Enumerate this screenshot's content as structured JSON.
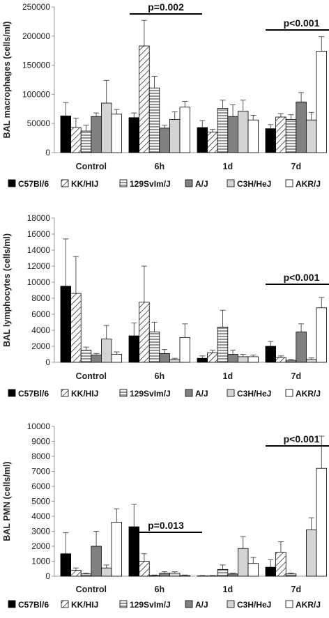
{
  "chart_data": [
    {
      "type": "bar",
      "ylabel": "BAL macrophages (cells/ml)",
      "ylim": [
        0,
        250000
      ],
      "yticks": [
        0,
        50000,
        100000,
        150000,
        200000,
        250000
      ],
      "yticklabels": [
        "0",
        "50000",
        "100000",
        "150000",
        "200000",
        "250000"
      ],
      "categories": [
        "Control",
        "6h",
        "1d",
        "7d"
      ],
      "series": [
        {
          "name": "C57Bl/6",
          "values": [
            63000,
            60000,
            43000,
            41000
          ],
          "errors": [
            23000,
            8000,
            12000,
            7000
          ]
        },
        {
          "name": "KK/HIJ",
          "values": [
            43000,
            183000,
            35000,
            61000
          ],
          "errors": [
            16000,
            44000,
            5000,
            6000
          ]
        },
        {
          "name": "129SvIm/J",
          "values": [
            37000,
            111000,
            76000,
            57000
          ],
          "errors": [
            10000,
            20000,
            14000,
            8000
          ]
        },
        {
          "name": "A/J",
          "values": [
            62000,
            42000,
            62000,
            87000
          ],
          "errors": [
            6000,
            5000,
            20000,
            16000
          ]
        },
        {
          "name": "C3H/HeJ",
          "values": [
            85000,
            57000,
            71000,
            56000
          ],
          "errors": [
            39000,
            13000,
            19000,
            13000
          ]
        },
        {
          "name": "AKR/J",
          "values": [
            66000,
            78000,
            56000,
            174000
          ],
          "errors": [
            8000,
            10000,
            8000,
            25000
          ]
        }
      ],
      "annotations": [
        {
          "text": "p=0.002",
          "category": "6h"
        },
        {
          "text": "p<0.001",
          "category": "7d"
        }
      ],
      "legend": "bottom"
    },
    {
      "type": "bar",
      "ylabel": "BAL lymphocytes (cells/ml)",
      "ylim": [
        0,
        18000
      ],
      "yticks": [
        0,
        2000,
        4000,
        6000,
        8000,
        10000,
        12000,
        14000,
        16000,
        18000
      ],
      "yticklabels": [
        "0",
        "2000",
        "4000",
        "6000",
        "8000",
        "10000",
        "12000",
        "14000",
        "16000",
        "18000"
      ],
      "categories": [
        "Control",
        "6h",
        "1d",
        "7d"
      ],
      "series": [
        {
          "name": "C57Bl/6",
          "values": [
            9500,
            3300,
            500,
            2000
          ],
          "errors": [
            5900,
            1600,
            300,
            600
          ]
        },
        {
          "name": "KK/HIJ",
          "values": [
            8600,
            7500,
            1200,
            600
          ],
          "errors": [
            4600,
            4500,
            300,
            200
          ]
        },
        {
          "name": "129SvIm/J",
          "values": [
            1500,
            3800,
            4400,
            250
          ],
          "errors": [
            400,
            1200,
            2100,
            100
          ]
        },
        {
          "name": "A/J",
          "values": [
            900,
            1100,
            1000,
            3800
          ],
          "errors": [
            200,
            500,
            500,
            1000
          ]
        },
        {
          "name": "C3H/HeJ",
          "values": [
            2900,
            350,
            700,
            350
          ],
          "errors": [
            1700,
            150,
            300,
            200
          ]
        },
        {
          "name": "AKR/J",
          "values": [
            1000,
            3100,
            700,
            6800
          ],
          "errors": [
            300,
            1700,
            200,
            1300
          ]
        }
      ],
      "annotations": [
        {
          "text": "p<0.001",
          "category": "7d"
        }
      ],
      "legend": "bottom"
    },
    {
      "type": "bar",
      "ylabel": "BAL PMN (cells/ml)",
      "ylim": [
        0,
        10000
      ],
      "yticks": [
        0,
        1000,
        2000,
        3000,
        4000,
        5000,
        6000,
        7000,
        8000,
        9000,
        10000
      ],
      "yticklabels": [
        "0",
        "1000",
        "2000",
        "3000",
        "4000",
        "5000",
        "6000",
        "7000",
        "8000",
        "9000",
        "10000"
      ],
      "categories": [
        "Control",
        "6h",
        "1d",
        "7d"
      ],
      "series": [
        {
          "name": "C57Bl/6",
          "values": [
            1500,
            3300,
            20,
            600
          ],
          "errors": [
            1400,
            1500,
            20,
            500
          ]
        },
        {
          "name": "KK/HIJ",
          "values": [
            400,
            1000,
            20,
            1600
          ],
          "errors": [
            150,
            500,
            20,
            700
          ]
        },
        {
          "name": "129SvIm/J",
          "values": [
            150,
            50,
            450,
            150
          ],
          "errors": [
            50,
            30,
            300,
            60
          ]
        },
        {
          "name": "A/J",
          "values": [
            2000,
            200,
            150,
            0
          ],
          "errors": [
            1000,
            100,
            60,
            0
          ]
        },
        {
          "name": "C3H/HeJ",
          "values": [
            550,
            200,
            1850,
            3100
          ],
          "errors": [
            200,
            100,
            800,
            800
          ]
        },
        {
          "name": "AKR/J",
          "values": [
            3600,
            50,
            850,
            7200
          ],
          "errors": [
            900,
            30,
            400,
            2150
          ]
        }
      ],
      "annotations": [
        {
          "text": "p=0.013",
          "category": "6h"
        },
        {
          "text": "p<0.001",
          "category": "7d"
        }
      ],
      "legend": "bottom"
    }
  ],
  "colors": {
    "series": [
      "#000000",
      "#ffffff",
      "#f0f0f0",
      "#808080",
      "#d4d4d4",
      "#ffffff"
    ],
    "patterns": [
      "solid",
      "diagonal",
      "horizontal",
      "solid",
      "solid",
      "solid"
    ]
  }
}
